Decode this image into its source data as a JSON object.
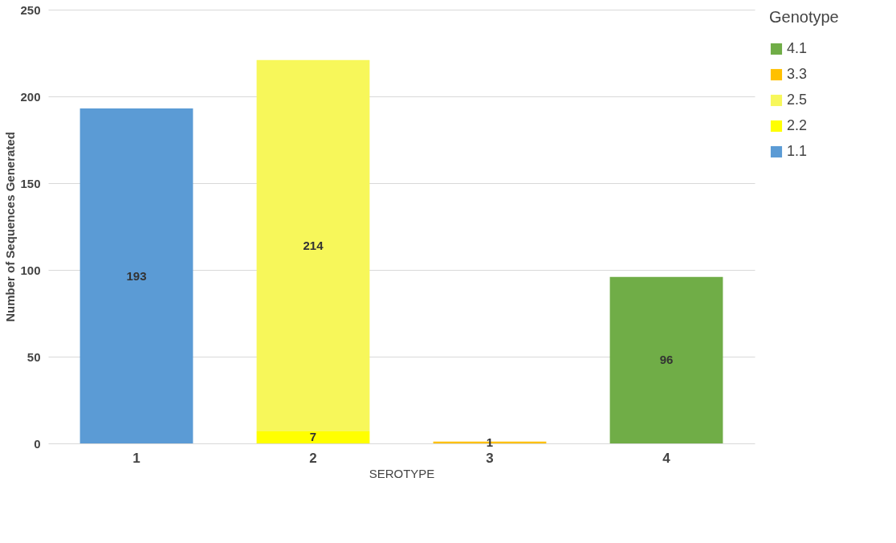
{
  "chart_data": {
    "type": "bar",
    "stacked": true,
    "xlabel": "SEROTYPE",
    "ylabel": "Number of Sequences Generated",
    "legend_title": "Genotype",
    "categories": [
      "1",
      "2",
      "3",
      "4"
    ],
    "series": [
      {
        "name": "1.1",
        "color": "#5b9bd5",
        "values": [
          193,
          null,
          null,
          null
        ]
      },
      {
        "name": "2.2",
        "color": "#ffff00",
        "values": [
          null,
          7,
          null,
          null
        ]
      },
      {
        "name": "2.5",
        "color": "#f7f75a",
        "values": [
          null,
          214,
          null,
          null
        ]
      },
      {
        "name": "3.3",
        "color": "#ffc000",
        "values": [
          null,
          null,
          1,
          null
        ]
      },
      {
        "name": "4.1",
        "color": "#70ad47",
        "values": [
          null,
          null,
          null,
          96
        ]
      }
    ],
    "ylim": [
      0,
      250
    ],
    "yticks": [
      0,
      50,
      100,
      150,
      200,
      250
    ],
    "grid": "y",
    "legend": "right",
    "data_labels": true
  }
}
